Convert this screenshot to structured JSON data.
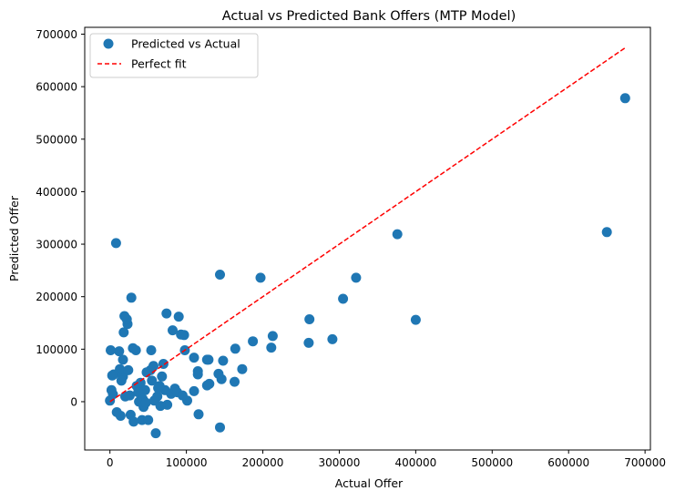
{
  "chart_data": {
    "type": "scatter",
    "title": "Actual vs Predicted Bank Offers (MTP Model)",
    "xlabel": "Actual Offer",
    "ylabel": "Predicted Offer",
    "xlim": [
      -33000,
      707000
    ],
    "ylim": [
      -92000,
      713000
    ],
    "x_ticks": [
      0,
      100000,
      200000,
      300000,
      400000,
      500000,
      600000,
      700000
    ],
    "y_ticks": [
      0,
      100000,
      200000,
      300000,
      400000,
      500000,
      600000,
      700000
    ],
    "grid": false,
    "legend": {
      "placement": "top-left",
      "entries": [
        "Predicted vs Actual",
        "Perfect fit"
      ]
    },
    "colors": {
      "points": "#1f77b4",
      "perfect_fit": "#ff0000"
    },
    "series": [
      {
        "name": "Predicted vs Actual",
        "points": [
          [
            674000,
            578000
          ],
          [
            650000,
            323000
          ],
          [
            376000,
            319000
          ],
          [
            400000,
            156000
          ],
          [
            322000,
            236000
          ],
          [
            305000,
            196000
          ],
          [
            291000,
            119000
          ],
          [
            261000,
            157000
          ],
          [
            260000,
            112000
          ],
          [
            213000,
            125000
          ],
          [
            211000,
            103000
          ],
          [
            197000,
            236000
          ],
          [
            187000,
            115000
          ],
          [
            173000,
            62000
          ],
          [
            164000,
            101000
          ],
          [
            163000,
            38000
          ],
          [
            146000,
            43000
          ],
          [
            148000,
            78000
          ],
          [
            142000,
            53000
          ],
          [
            144000,
            242000
          ],
          [
            144000,
            -49000
          ],
          [
            129000,
            80000
          ],
          [
            127000,
            80000
          ],
          [
            130000,
            34000
          ],
          [
            127000,
            31000
          ],
          [
            116000,
            -24000
          ],
          [
            115000,
            58000
          ],
          [
            115000,
            52000
          ],
          [
            110000,
            84000
          ],
          [
            110000,
            20000
          ],
          [
            101000,
            2000
          ],
          [
            98000,
            98000
          ],
          [
            97000,
            127000
          ],
          [
            93000,
            128000
          ],
          [
            90000,
            162000
          ],
          [
            82000,
            136000
          ],
          [
            74000,
            168000
          ],
          [
            70000,
            72000
          ],
          [
            75000,
            -6000
          ],
          [
            72000,
            22000
          ],
          [
            68000,
            48000
          ],
          [
            65000,
            30000
          ],
          [
            62000,
            10000
          ],
          [
            58000,
            2000
          ],
          [
            60000,
            -60000
          ],
          [
            57000,
            68000
          ],
          [
            54000,
            98000
          ],
          [
            53000,
            60000
          ],
          [
            48000,
            56000
          ],
          [
            46000,
            22000
          ],
          [
            44000,
            -10000
          ],
          [
            42000,
            -35000
          ],
          [
            40000,
            36000
          ],
          [
            38000,
            0
          ],
          [
            34000,
            98000
          ],
          [
            30000,
            102000
          ],
          [
            28000,
            198000
          ],
          [
            26000,
            12000
          ],
          [
            23000,
            148000
          ],
          [
            22000,
            157000
          ],
          [
            19000,
            163000
          ],
          [
            18000,
            132000
          ],
          [
            17000,
            80000
          ],
          [
            17000,
            48000
          ],
          [
            12000,
            96000
          ],
          [
            13000,
            62000
          ],
          [
            15000,
            40000
          ],
          [
            14000,
            -27000
          ],
          [
            8000,
            302000
          ],
          [
            5000,
            52000
          ],
          [
            3000,
            50000
          ],
          [
            1000,
            98000
          ],
          [
            2000,
            22000
          ],
          [
            0,
            2000
          ],
          [
            4000,
            14000
          ],
          [
            9000,
            -20000
          ],
          [
            20000,
            10000
          ],
          [
            24000,
            60000
          ],
          [
            27000,
            -25000
          ],
          [
            31000,
            -38000
          ],
          [
            35000,
            30000
          ],
          [
            37000,
            18000
          ],
          [
            43000,
            5000
          ],
          [
            47000,
            -2000
          ],
          [
            50000,
            -35000
          ],
          [
            55000,
            40000
          ],
          [
            63000,
            26000
          ],
          [
            66000,
            -8000
          ],
          [
            80000,
            15000
          ],
          [
            85000,
            25000
          ],
          [
            88000,
            18000
          ],
          [
            95000,
            12000
          ]
        ]
      },
      {
        "name": "Perfect fit",
        "line": [
          [
            0,
            0
          ],
          [
            674000,
            674000
          ]
        ]
      }
    ]
  }
}
